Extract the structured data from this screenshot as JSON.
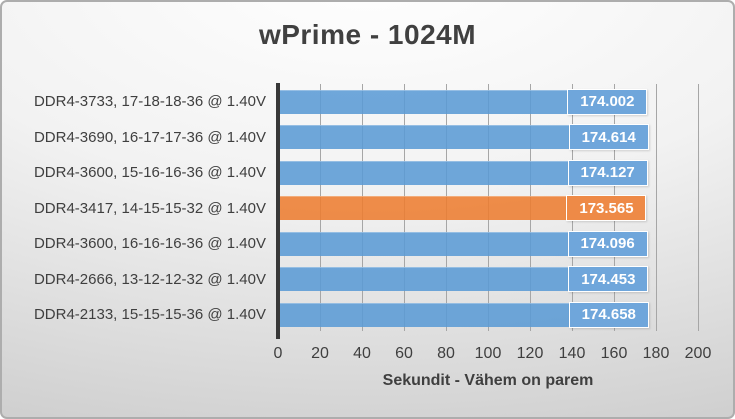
{
  "chart_data": {
    "type": "bar",
    "orientation": "horizontal",
    "title": "wPrime - 1024M",
    "categories": [
      "DDR4-3733, 17-18-18-36 @ 1.40V",
      "DDR4-3690, 16-17-17-36 @ 1.40V",
      "DDR4-3600, 15-16-16-36 @ 1.40V",
      "DDR4-3417, 14-15-15-32 @ 1.40V",
      "DDR4-3600, 16-16-16-36 @ 1.40V",
      "DDR4-2666, 13-12-12-32 @ 1.40V",
      "DDR4-2133, 15-15-15-36 @ 1.40V"
    ],
    "values": [
      174.002,
      174.614,
      174.127,
      173.565,
      174.096,
      174.453,
      174.658
    ],
    "value_labels": [
      "174.002",
      "174.614",
      "174.127",
      "173.565",
      "174.096",
      "174.453",
      "174.658"
    ],
    "highlight_index": 3,
    "xlabel": "Sekundit - Vähem on parem",
    "xlim": [
      0,
      200
    ],
    "xticks": [
      0,
      20,
      40,
      60,
      80,
      100,
      120,
      140,
      160,
      180,
      200
    ],
    "grid": true,
    "legend": false,
    "colors": {
      "bar": "#5B9BD5",
      "bar_blend": "#6FA6DB",
      "bar_highlight": "#ED7D31",
      "bar_highlight_blend": "#EE8A47",
      "value_text": "#FFFFFF",
      "axis_line": "#383838",
      "gridline": "#A6A6A6",
      "label_text": "#3F3F3F",
      "title_text": "#404040"
    }
  }
}
